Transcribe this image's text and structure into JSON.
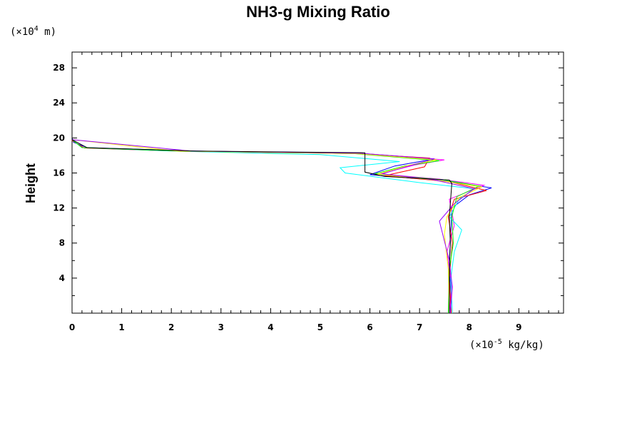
{
  "chart_data": {
    "type": "line",
    "title": "NH3-g Mixing Ratio",
    "ylabel": "Height",
    "x_unit_prefix": "(×10",
    "x_unit_exp": "-5",
    "x_unit_suffix": " kg/kg)",
    "y_unit_prefix": "(×10",
    "y_unit_exp": "4",
    "y_unit_suffix": " m)",
    "xlim": [
      0,
      9.9
    ],
    "ylim": [
      0,
      29.8
    ],
    "x_ticks": [
      0,
      1,
      2,
      3,
      4,
      5,
      6,
      7,
      8,
      9
    ],
    "y_ticks": [
      4,
      8,
      12,
      16,
      20,
      24,
      28
    ],
    "grid": false,
    "series": [
      {
        "color": "#0000ff",
        "points": [
          [
            7.62,
            0
          ],
          [
            7.62,
            3
          ],
          [
            7.6,
            6
          ],
          [
            7.63,
            9
          ],
          [
            7.65,
            12
          ],
          [
            8.0,
            13.5
          ],
          [
            8.45,
            14.3
          ],
          [
            7.5,
            15.1
          ],
          [
            6.0,
            15.8
          ],
          [
            6.5,
            16.8
          ],
          [
            7.3,
            17.6
          ],
          [
            5.9,
            18.2
          ],
          [
            2.5,
            18.5
          ],
          [
            0.3,
            18.9
          ],
          [
            0.03,
            19.5
          ],
          [
            0,
            20
          ],
          [
            0,
            29.8
          ]
        ]
      },
      {
        "color": "#ff00ff",
        "points": [
          [
            7.6,
            0
          ],
          [
            7.65,
            3
          ],
          [
            7.55,
            7
          ],
          [
            7.7,
            10
          ],
          [
            7.6,
            13
          ],
          [
            8.3,
            14.6
          ],
          [
            7.4,
            15.3
          ],
          [
            6.2,
            15.9
          ],
          [
            6.9,
            16.9
          ],
          [
            7.5,
            17.5
          ],
          [
            5.6,
            18.3
          ],
          [
            2.0,
            18.5
          ],
          [
            0.2,
            18.9
          ],
          [
            0,
            19.8
          ],
          [
            0,
            29.8
          ]
        ]
      },
      {
        "color": "#ff0000",
        "points": [
          [
            7.64,
            0
          ],
          [
            7.6,
            4
          ],
          [
            7.66,
            8
          ],
          [
            7.58,
            11
          ],
          [
            7.7,
            13
          ],
          [
            8.35,
            14.0
          ],
          [
            7.6,
            15.0
          ],
          [
            6.3,
            15.7
          ],
          [
            7.1,
            16.7
          ],
          [
            7.2,
            17.7
          ],
          [
            5.8,
            18.2
          ],
          [
            2.3,
            18.45
          ],
          [
            0.25,
            18.85
          ],
          [
            0,
            19.7
          ],
          [
            0,
            29.8
          ]
        ]
      },
      {
        "color": "#00ffff",
        "points": [
          [
            7.66,
            0
          ],
          [
            7.63,
            4
          ],
          [
            7.7,
            7
          ],
          [
            7.85,
            9.5
          ],
          [
            7.6,
            11
          ],
          [
            7.8,
            13
          ],
          [
            8.1,
            14.2
          ],
          [
            7.0,
            14.9
          ],
          [
            5.5,
            16.0
          ],
          [
            5.4,
            16.6
          ],
          [
            6.6,
            17.3
          ],
          [
            5.0,
            18.1
          ],
          [
            2.0,
            18.5
          ],
          [
            0.2,
            18.9
          ],
          [
            0,
            19.8
          ],
          [
            0,
            29.8
          ]
        ]
      },
      {
        "color": "#00ff00",
        "points": [
          [
            7.58,
            0
          ],
          [
            7.6,
            5
          ],
          [
            7.68,
            8
          ],
          [
            7.65,
            11
          ],
          [
            7.75,
            13.3
          ],
          [
            8.2,
            14.5
          ],
          [
            7.5,
            15.2
          ],
          [
            6.1,
            15.9
          ],
          [
            6.7,
            16.8
          ],
          [
            7.4,
            17.4
          ],
          [
            5.7,
            18.2
          ],
          [
            2.2,
            18.5
          ],
          [
            0.2,
            18.9
          ],
          [
            0,
            19.8
          ],
          [
            0,
            29.8
          ]
        ]
      },
      {
        "color": "#ffff00",
        "points": [
          [
            7.6,
            0
          ],
          [
            7.58,
            5
          ],
          [
            7.5,
            9
          ],
          [
            7.55,
            11
          ],
          [
            7.8,
            13.2
          ],
          [
            8.25,
            14.4
          ],
          [
            7.45,
            15.1
          ],
          [
            6.15,
            15.85
          ],
          [
            6.8,
            16.9
          ],
          [
            7.35,
            17.5
          ],
          [
            5.75,
            18.2
          ],
          [
            2.1,
            18.5
          ],
          [
            0,
            19.8
          ],
          [
            0,
            29.8
          ]
        ]
      },
      {
        "color": "#9900ff",
        "points": [
          [
            7.62,
            0
          ],
          [
            7.66,
            3
          ],
          [
            7.6,
            6
          ],
          [
            7.4,
            10.5
          ],
          [
            7.7,
            12.5
          ],
          [
            8.1,
            14.2
          ],
          [
            7.3,
            15.2
          ],
          [
            6.25,
            15.9
          ],
          [
            6.9,
            17.0
          ],
          [
            7.3,
            17.6
          ],
          [
            5.8,
            18.25
          ],
          [
            2.4,
            18.5
          ],
          [
            0,
            19.8
          ],
          [
            0,
            29.8
          ]
        ]
      },
      {
        "color": "#000000",
        "points": [
          [
            7.6,
            0
          ],
          [
            7.6,
            5
          ],
          [
            7.62,
            8
          ],
          [
            7.6,
            11
          ],
          [
            7.65,
            14.8
          ],
          [
            7.6,
            15.2
          ],
          [
            6.3,
            15.6
          ],
          [
            5.9,
            16.1
          ],
          [
            5.9,
            16.9
          ],
          [
            5.9,
            18.3
          ],
          [
            2.5,
            18.5
          ],
          [
            0.3,
            18.9
          ],
          [
            0,
            19.8
          ],
          [
            0,
            29.8
          ]
        ]
      }
    ]
  }
}
